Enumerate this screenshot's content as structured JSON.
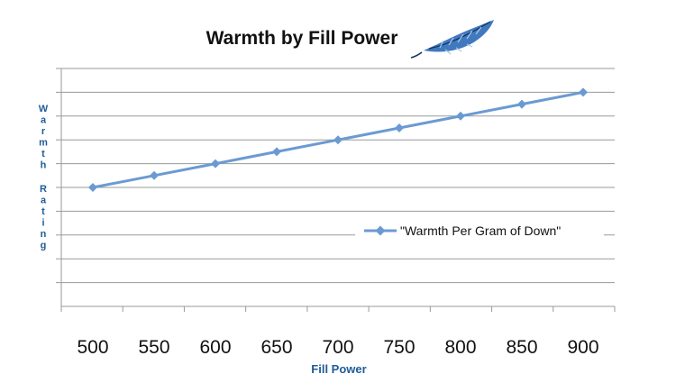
{
  "chart_data": {
    "type": "line",
    "title": "Warmth by Fill Power",
    "xlabel": "Fill Power",
    "ylabel": "Warmth Rating",
    "x": [
      500,
      550,
      600,
      650,
      700,
      750,
      800,
      850,
      900
    ],
    "series": [
      {
        "name": "\"Warmth Per Gram of Down\"",
        "values": [
          5,
          5.5,
          6,
          6.5,
          7,
          7.5,
          8,
          8.5,
          9
        ]
      }
    ],
    "ylim": [
      0,
      10
    ],
    "grid": true,
    "legend_position": "right",
    "y_tick_labels_shown": false
  },
  "colors": {
    "series": "#6b9ad3",
    "axis_title": "#1f5c99",
    "feather": "#2c6ab8",
    "grid": "#9a9a9a"
  },
  "icons": {
    "title_decoration": "feather-icon"
  }
}
